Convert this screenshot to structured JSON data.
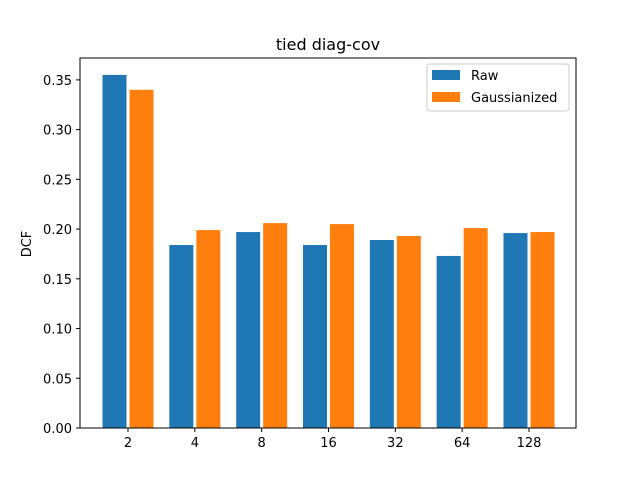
{
  "chart_data": {
    "type": "bar",
    "title": "tied diag-cov",
    "xlabel": "",
    "ylabel": "DCF",
    "categories": [
      "2",
      "4",
      "8",
      "16",
      "32",
      "64",
      "128"
    ],
    "series": [
      {
        "name": "Raw",
        "color": "#1f77b4",
        "values": [
          0.355,
          0.184,
          0.197,
          0.184,
          0.189,
          0.173,
          0.196
        ]
      },
      {
        "name": "Gaussianized",
        "color": "#ff7f0e",
        "values": [
          0.34,
          0.199,
          0.206,
          0.205,
          0.193,
          0.201,
          0.197
        ]
      }
    ],
    "ylim": [
      0,
      0.372
    ],
    "yticks": [
      "0.00",
      "0.05",
      "0.10",
      "0.15",
      "0.20",
      "0.25",
      "0.30",
      "0.35"
    ],
    "legend_position": "top-right",
    "grid": false
  }
}
